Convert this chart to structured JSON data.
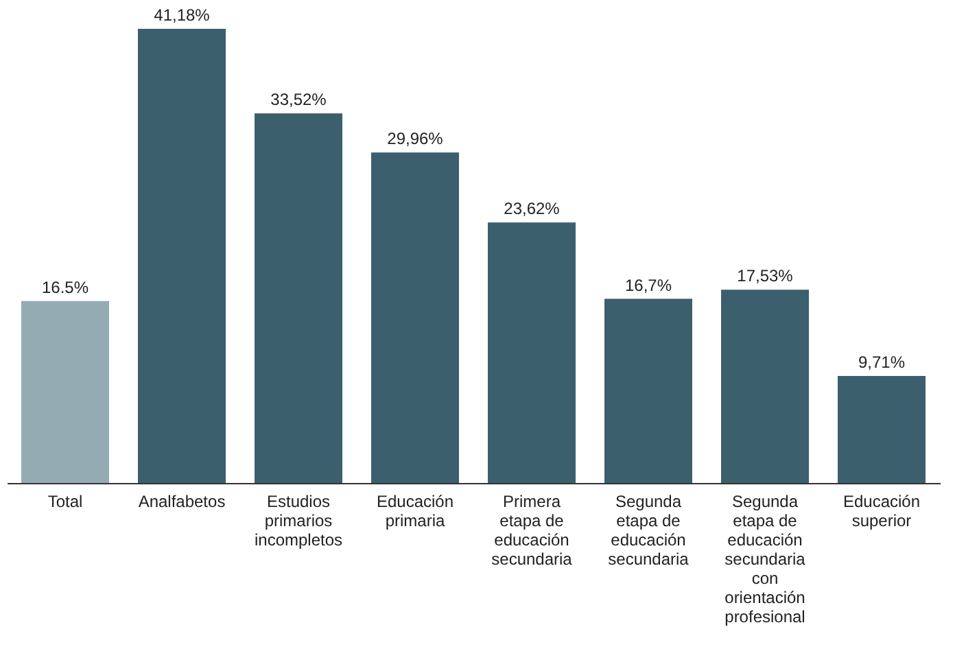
{
  "chart_data": {
    "type": "bar",
    "categories": [
      "Total",
      "Analfabetos",
      "Estudios primarios incompletos",
      "Educación primaria",
      "Primera etapa de educación secundaria",
      "Segunda etapa de educación secundaria",
      "Segunda etapa de educación secundaria con orientación profesional",
      "Educación superior"
    ],
    "values": [
      16.5,
      41.18,
      33.52,
      29.96,
      23.62,
      16.7,
      17.53,
      9.71
    ],
    "value_labels": [
      "16.5%",
      "41,18%",
      "33,52%",
      "29,96%",
      "23,62%",
      "16,7%",
      "17,53%",
      "9,71%"
    ],
    "colors": [
      "#95abb4",
      "#3b5f6d",
      "#3b5f6d",
      "#3b5f6d",
      "#3b5f6d",
      "#3b5f6d",
      "#3b5f6d",
      "#3b5f6d"
    ],
    "grid": false
  }
}
